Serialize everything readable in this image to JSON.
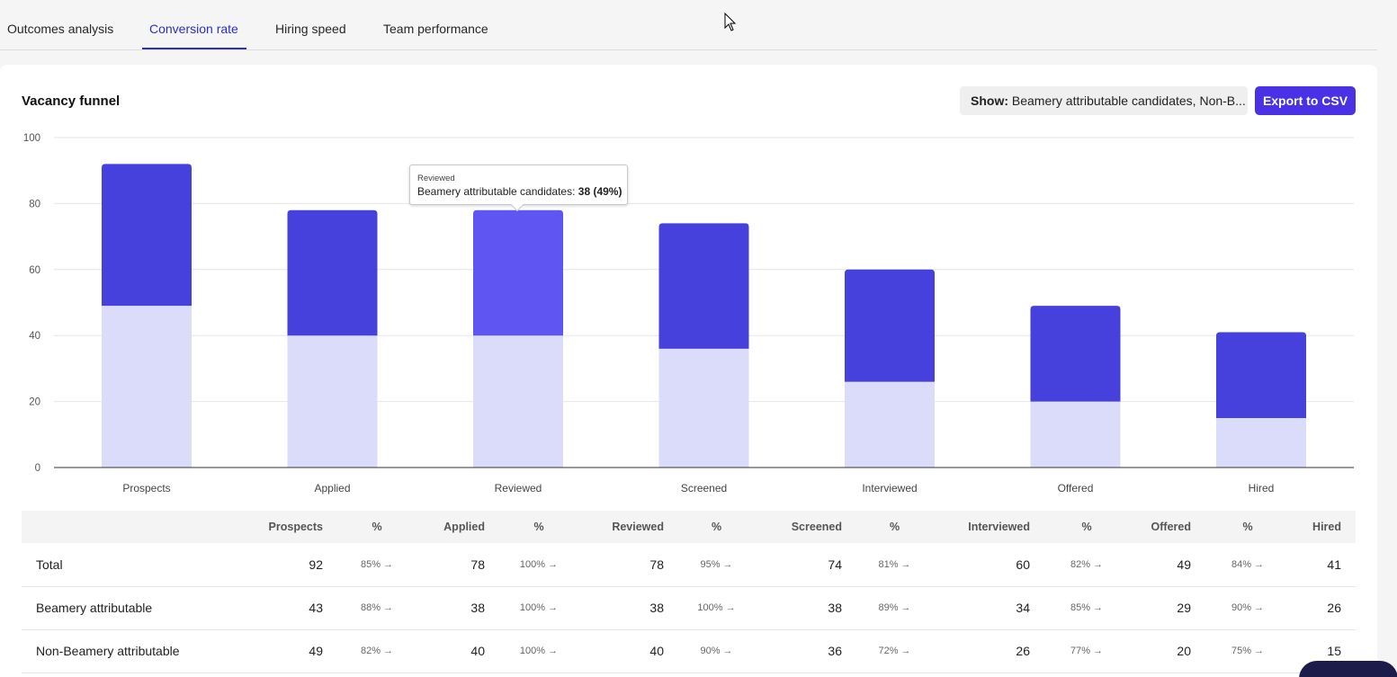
{
  "tabs": [
    {
      "label": "Outcomes analysis",
      "active": false
    },
    {
      "label": "Conversion rate",
      "active": true
    },
    {
      "label": "Hiring speed",
      "active": false
    },
    {
      "label": "Team performance",
      "active": false
    }
  ],
  "card": {
    "title": "Vacancy funnel",
    "show_label": "Show:",
    "show_value": "Beamery attributable candidates, Non-B...",
    "export_label": "Export to CSV"
  },
  "colors": {
    "accent": "#4b31e6",
    "series_dark": "#4640dd",
    "series_highlight": "#5e55f2",
    "series_light": "#dadcf9"
  },
  "chart_data": {
    "type": "bar",
    "stacked": true,
    "categories": [
      "Prospects",
      "Applied",
      "Reviewed",
      "Screened",
      "Interviewed",
      "Offered",
      "Hired"
    ],
    "series": [
      {
        "values": [
          49,
          40,
          40,
          36,
          26,
          20,
          15
        ]
      },
      {
        "values": [
          43,
          38,
          38,
          38,
          34,
          29,
          26
        ]
      }
    ],
    "yticks": [
      "0",
      "20",
      "40",
      "60",
      "80",
      "100"
    ],
    "ylim": [
      0,
      100
    ],
    "highlight_index": 2,
    "grid": true
  },
  "tooltip": {
    "title": "Reviewed",
    "label": "Beamery attributable candidates:",
    "value": "38 (49%)"
  },
  "table": {
    "headers": [
      "",
      "Prospects",
      "%",
      "Applied",
      "%",
      "Reviewed",
      "%",
      "Screened",
      "%",
      "Interviewed",
      "%",
      "Offered",
      "%",
      "Hired"
    ],
    "rows": [
      {
        "label": "Total",
        "cells": [
          "92",
          "85% →",
          "78",
          "100% →",
          "78",
          "95% →",
          "74",
          "81% →",
          "60",
          "82% →",
          "49",
          "84% →",
          "41"
        ]
      },
      {
        "label": "Beamery attributable",
        "cells": [
          "43",
          "88% →",
          "38",
          "100% →",
          "38",
          "100% →",
          "38",
          "89% →",
          "34",
          "85% →",
          "29",
          "90% →",
          "26"
        ]
      },
      {
        "label": "Non-Beamery attributable",
        "cells": [
          "49",
          "82% →",
          "40",
          "100% →",
          "40",
          "90% →",
          "36",
          "72% →",
          "26",
          "77% →",
          "20",
          "75% →",
          "15"
        ]
      }
    ]
  }
}
